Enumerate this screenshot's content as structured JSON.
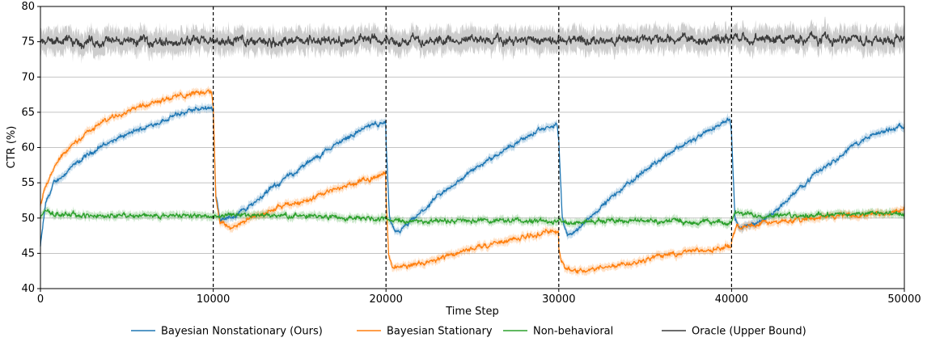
{
  "chart_data": {
    "type": "line",
    "title": "",
    "xlabel": "Time Step",
    "ylabel": "CTR (%)",
    "xlim": [
      0,
      50000
    ],
    "ylim": [
      40,
      80
    ],
    "x_ticks": [
      0,
      10000,
      20000,
      30000,
      40000,
      50000
    ],
    "y_ticks": [
      40,
      45,
      50,
      55,
      60,
      65,
      70,
      75,
      80
    ],
    "grid": "horizontal",
    "vertical_markers": [
      10000,
      20000,
      30000,
      40000
    ],
    "legend_position": "bottom-center",
    "series": [
      {
        "name": "Bayesian Nonstationary (Ours)",
        "color": "#1f77b4",
        "points": [
          [
            0,
            46
          ],
          [
            300,
            52
          ],
          [
            800,
            55
          ],
          [
            1500,
            56.5
          ],
          [
            2500,
            58.5
          ],
          [
            3500,
            60.2
          ],
          [
            5000,
            61.8
          ],
          [
            6500,
            63.3
          ],
          [
            8000,
            64.7
          ],
          [
            9000,
            65.4
          ],
          [
            9900,
            65.8
          ],
          [
            10000,
            65
          ],
          [
            10150,
            53
          ],
          [
            10400,
            50
          ],
          [
            11000,
            50
          ],
          [
            12000,
            51.5
          ],
          [
            13000,
            53.5
          ],
          [
            14000,
            55.3
          ],
          [
            15000,
            57
          ],
          [
            16000,
            58.6
          ],
          [
            17000,
            60.3
          ],
          [
            18000,
            61.8
          ],
          [
            19000,
            63
          ],
          [
            19700,
            63.5
          ],
          [
            19990,
            63.5
          ],
          [
            20000,
            61
          ],
          [
            20200,
            50
          ],
          [
            20500,
            47.8
          ],
          [
            21000,
            48.5
          ],
          [
            22000,
            50.7
          ],
          [
            23000,
            53
          ],
          [
            24000,
            54.9
          ],
          [
            25000,
            56.7
          ],
          [
            26000,
            58.4
          ],
          [
            27000,
            60
          ],
          [
            28000,
            61.3
          ],
          [
            29000,
            62.5
          ],
          [
            29900,
            63.2
          ],
          [
            30000,
            61
          ],
          [
            30200,
            50
          ],
          [
            30500,
            47.5
          ],
          [
            31000,
            48.2
          ],
          [
            32000,
            50.6
          ],
          [
            33000,
            52.8
          ],
          [
            34000,
            54.8
          ],
          [
            35000,
            56.8
          ],
          [
            36000,
            58.6
          ],
          [
            37000,
            60.2
          ],
          [
            38000,
            61.3
          ],
          [
            39000,
            62.8
          ],
          [
            39900,
            64.3
          ],
          [
            40000,
            62
          ],
          [
            40200,
            50
          ],
          [
            40500,
            48.4
          ],
          [
            41000,
            49
          ],
          [
            42000,
            50
          ],
          [
            43000,
            52
          ],
          [
            44000,
            54.4
          ],
          [
            45000,
            56.6
          ],
          [
            46000,
            58.4
          ],
          [
            47000,
            60.2
          ],
          [
            48000,
            61.6
          ],
          [
            49000,
            62.4
          ],
          [
            50000,
            63.3
          ]
        ]
      },
      {
        "name": "Bayesian Stationary",
        "color": "#ff7f0e",
        "points": [
          [
            0,
            52
          ],
          [
            300,
            54.5
          ],
          [
            800,
            57
          ],
          [
            1500,
            59.5
          ],
          [
            2500,
            61.8
          ],
          [
            3500,
            63.5
          ],
          [
            5000,
            65.3
          ],
          [
            6500,
            66.5
          ],
          [
            8000,
            67.3
          ],
          [
            9000,
            67.8
          ],
          [
            9900,
            68
          ],
          [
            10000,
            66
          ],
          [
            10150,
            53
          ],
          [
            10400,
            49.5
          ],
          [
            11000,
            48.6
          ],
          [
            12000,
            49.8
          ],
          [
            13000,
            50.8
          ],
          [
            14000,
            51.6
          ],
          [
            15000,
            52.3
          ],
          [
            16000,
            53
          ],
          [
            17000,
            54
          ],
          [
            18000,
            54.8
          ],
          [
            19000,
            55.6
          ],
          [
            19990,
            56.3
          ],
          [
            20000,
            53
          ],
          [
            20150,
            45
          ],
          [
            20400,
            43
          ],
          [
            21000,
            43.2
          ],
          [
            22000,
            43.6
          ],
          [
            23000,
            44.3
          ],
          [
            24000,
            45
          ],
          [
            25000,
            45.7
          ],
          [
            26000,
            46.3
          ],
          [
            27000,
            46.8
          ],
          [
            28000,
            47.3
          ],
          [
            29000,
            47.9
          ],
          [
            29990,
            48.2
          ],
          [
            30000,
            46
          ],
          [
            30150,
            44
          ],
          [
            30400,
            42.7
          ],
          [
            31000,
            42.5
          ],
          [
            32000,
            42.8
          ],
          [
            33000,
            43.2
          ],
          [
            34000,
            43.6
          ],
          [
            35000,
            44.2
          ],
          [
            36000,
            44.7
          ],
          [
            37000,
            45.1
          ],
          [
            38000,
            45.4
          ],
          [
            39000,
            45.7
          ],
          [
            39990,
            46
          ],
          [
            40000,
            47
          ],
          [
            40300,
            48.6
          ],
          [
            41000,
            49
          ],
          [
            42000,
            49.3
          ],
          [
            43000,
            49.5
          ],
          [
            44000,
            49.7
          ],
          [
            45000,
            50.1
          ],
          [
            46000,
            50.3
          ],
          [
            47000,
            50.4
          ],
          [
            48000,
            50.5
          ],
          [
            49000,
            50.6
          ],
          [
            50000,
            51.3
          ]
        ]
      },
      {
        "name": "Non-behavioral",
        "color": "#2ca02c",
        "points": [
          [
            0,
            50
          ],
          [
            200,
            51
          ],
          [
            800,
            50.6
          ],
          [
            2000,
            50.4
          ],
          [
            4000,
            50.3
          ],
          [
            6000,
            50.3
          ],
          [
            8000,
            50.4
          ],
          [
            10000,
            50.3
          ],
          [
            12000,
            50.4
          ],
          [
            14000,
            50.3
          ],
          [
            16000,
            50.2
          ],
          [
            18000,
            50.1
          ],
          [
            20000,
            50
          ],
          [
            20300,
            49.6
          ],
          [
            22000,
            49.6
          ],
          [
            24000,
            49.6
          ],
          [
            26000,
            49.6
          ],
          [
            28000,
            49.6
          ],
          [
            30000,
            49.5
          ],
          [
            30300,
            49.3
          ],
          [
            32000,
            49.6
          ],
          [
            34000,
            49.7
          ],
          [
            36000,
            49.6
          ],
          [
            38000,
            49.5
          ],
          [
            40000,
            49.4
          ],
          [
            40200,
            50.6
          ],
          [
            42000,
            50.4
          ],
          [
            44000,
            50.4
          ],
          [
            46000,
            50.5
          ],
          [
            48000,
            50.6
          ],
          [
            50000,
            50.5
          ]
        ]
      },
      {
        "name": "Oracle (Upper Bound)",
        "color": "#3b3b3b",
        "band_color": "#c8c8c8",
        "points": [
          [
            0,
            75
          ],
          [
            50000,
            75.4
          ]
        ]
      }
    ]
  }
}
